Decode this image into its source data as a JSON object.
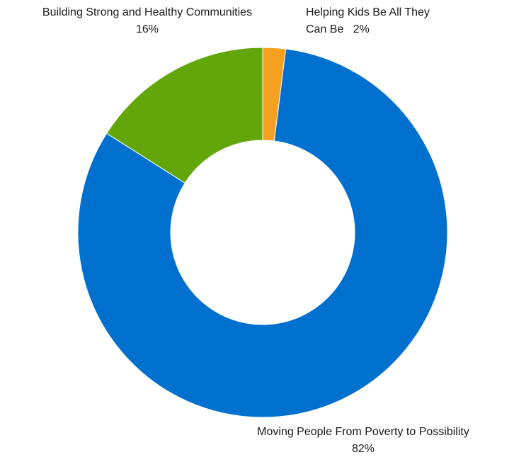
{
  "chart_data": {
    "type": "pie",
    "variant": "donut",
    "title": "",
    "legend": "none",
    "slices": [
      {
        "name": "Helping Kids Be All They Can Be",
        "label_lines": [
          "Helping Kids Be All They",
          "Can Be"
        ],
        "percent_label": "2%",
        "value": 2,
        "color": "#f5a01f"
      },
      {
        "name": "Moving People From Poverty to Possibility",
        "label_lines": [
          "Moving People From Poverty to Possibility"
        ],
        "percent_label": "82%",
        "value": 82,
        "color": "#0070cf"
      },
      {
        "name": "Building Strong and Healthy Communities",
        "label_lines": [
          "Building Strong and Healthy Communities"
        ],
        "percent_label": "16%",
        "value": 16,
        "color": "#62a60a"
      }
    ]
  }
}
